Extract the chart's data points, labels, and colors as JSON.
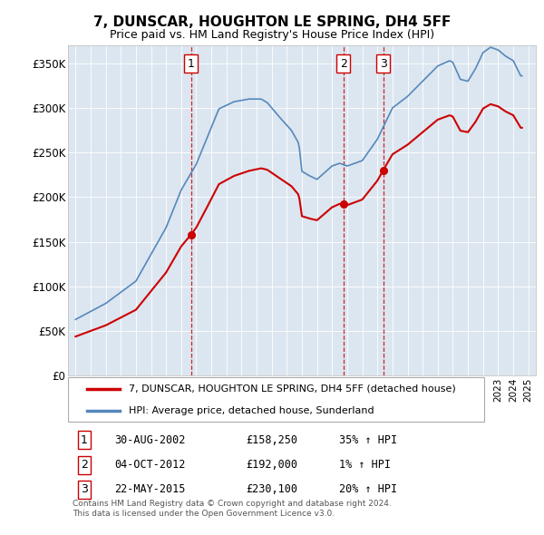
{
  "title": "7, DUNSCAR, HOUGHTON LE SPRING, DH4 5FF",
  "subtitle": "Price paid vs. HM Land Registry's House Price Index (HPI)",
  "plot_bg": "#dce6f0",
  "ylim": [
    0,
    370000
  ],
  "yticks": [
    0,
    50000,
    100000,
    150000,
    200000,
    250000,
    300000,
    350000
  ],
  "ytick_labels": [
    "£0",
    "£50K",
    "£100K",
    "£150K",
    "£200K",
    "£250K",
    "£300K",
    "£350K"
  ],
  "xlim_start": 1994.5,
  "xlim_end": 2025.5,
  "sale_dates": [
    2002.66,
    2012.75,
    2015.38
  ],
  "sale_prices": [
    158250,
    192000,
    230100
  ],
  "sale_labels": [
    "1",
    "2",
    "3"
  ],
  "red_color": "#cc0000",
  "blue_color": "#5588bb",
  "vline_color": "#cc0000",
  "legend_entry1": "7, DUNSCAR, HOUGHTON LE SPRING, DH4 5FF (detached house)",
  "legend_entry2": "HPI: Average price, detached house, Sunderland",
  "table_rows": [
    [
      "1",
      "30-AUG-2002",
      "£158,250",
      "35% ↑ HPI"
    ],
    [
      "2",
      "04-OCT-2012",
      "£192,000",
      "1% ↑ HPI"
    ],
    [
      "3",
      "22-MAY-2015",
      "£230,100",
      "20% ↑ HPI"
    ]
  ],
  "footer": "Contains HM Land Registry data © Crown copyright and database right 2024.\nThis data is licensed under the Open Government Licence v3.0.",
  "hpi_anchors": [
    [
      1995.0,
      63000
    ],
    [
      1997.0,
      81000
    ],
    [
      1999.0,
      106000
    ],
    [
      2001.0,
      166000
    ],
    [
      2002.0,
      208000
    ],
    [
      2003.0,
      237000
    ],
    [
      2004.5,
      299000
    ],
    [
      2005.5,
      307000
    ],
    [
      2006.5,
      310000
    ],
    [
      2007.3,
      310000
    ],
    [
      2007.7,
      306000
    ],
    [
      2008.5,
      290000
    ],
    [
      2009.3,
      275000
    ],
    [
      2009.8,
      260000
    ],
    [
      2010.0,
      229000
    ],
    [
      2010.5,
      224000
    ],
    [
      2011.0,
      220000
    ],
    [
      2012.0,
      235000
    ],
    [
      2012.5,
      238000
    ],
    [
      2013.0,
      235000
    ],
    [
      2014.0,
      241000
    ],
    [
      2015.0,
      265000
    ],
    [
      2016.0,
      300000
    ],
    [
      2017.0,
      313000
    ],
    [
      2018.0,
      330000
    ],
    [
      2019.0,
      347000
    ],
    [
      2019.8,
      353000
    ],
    [
      2020.0,
      351000
    ],
    [
      2020.5,
      332000
    ],
    [
      2021.0,
      330000
    ],
    [
      2021.5,
      344000
    ],
    [
      2022.0,
      362000
    ],
    [
      2022.5,
      368000
    ],
    [
      2023.0,
      365000
    ],
    [
      2023.5,
      358000
    ],
    [
      2024.0,
      353000
    ],
    [
      2024.5,
      336000
    ]
  ]
}
